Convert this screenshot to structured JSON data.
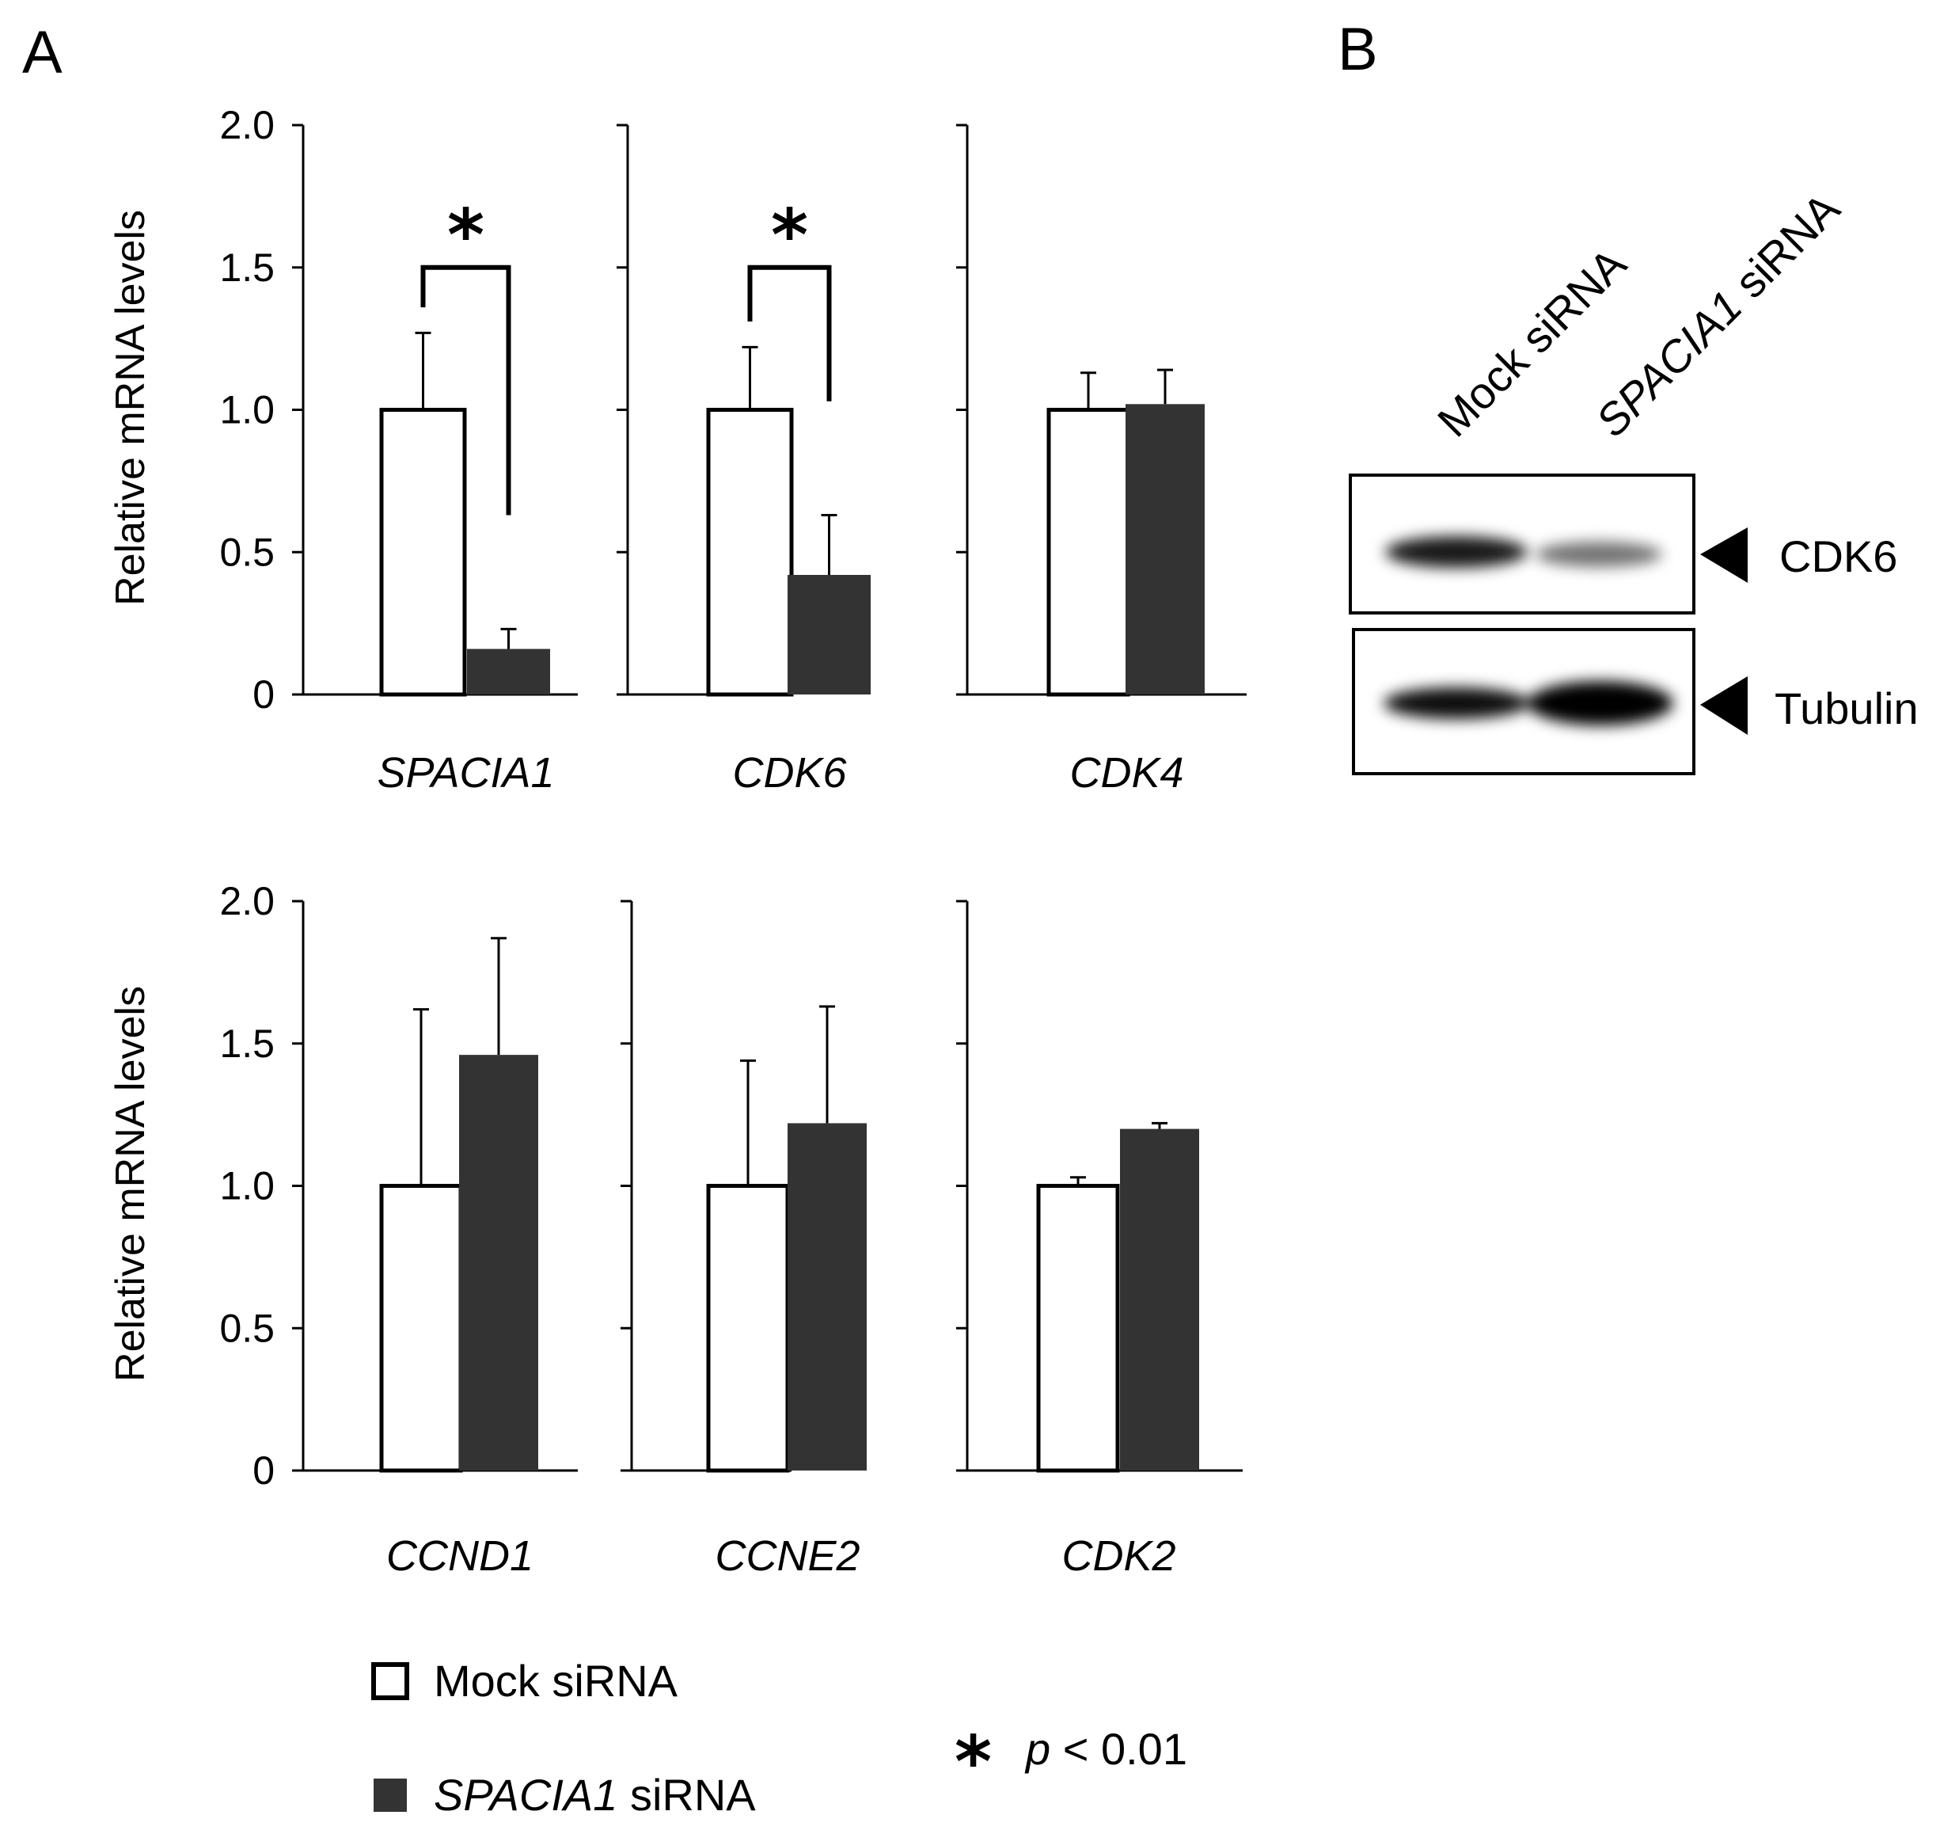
{
  "panels": {
    "a_label": "A",
    "b_label": "B"
  },
  "colors": {
    "mock": "#ffffff",
    "spacia1": "#333333",
    "axis": "#000000"
  },
  "legend": {
    "mock_label": "Mock siRNA",
    "spacia1_label_italic": "SPACIA1",
    "spacia1_label_rest": " siRNA",
    "sig_symbol": "*",
    "sig_p": "p",
    "sig_rest": " < 0.01"
  },
  "chart_data": [
    {
      "type": "bar",
      "title": "SPACIA1",
      "ylabel": "Relative mRNA levels",
      "yticks": [
        "0",
        "0.5",
        "1.0",
        "1.5",
        "2.0"
      ],
      "ylim": [
        0,
        2.0
      ],
      "series": [
        {
          "name": "Mock siRNA",
          "value": 1.0,
          "error": 0.27
        },
        {
          "name": "SPACIA1 siRNA",
          "value": 0.16,
          "error": 0.07
        }
      ],
      "significance": "*",
      "bracket_top": 1.5
    },
    {
      "type": "bar",
      "title": "CDK6",
      "ylabel": "",
      "ylim": [
        0,
        2.0
      ],
      "series": [
        {
          "name": "Mock siRNA",
          "value": 1.0,
          "error": 0.22
        },
        {
          "name": "SPACIA1 siRNA",
          "value": 0.42,
          "error": 0.21
        }
      ],
      "significance": "*",
      "bracket_top": 1.5
    },
    {
      "type": "bar",
      "title": "CDK4",
      "ylabel": "",
      "ylim": [
        0,
        2.0
      ],
      "series": [
        {
          "name": "Mock siRNA",
          "value": 1.0,
          "error": 0.13
        },
        {
          "name": "SPACIA1 siRNA",
          "value": 1.02,
          "error": 0.12
        }
      ]
    },
    {
      "type": "bar",
      "title": "CCND1",
      "ylabel": "Relative mRNA levels",
      "yticks": [
        "0",
        "0.5",
        "1.0",
        "1.5",
        "2.0"
      ],
      "ylim": [
        0,
        2.0
      ],
      "series": [
        {
          "name": "Mock siRNA",
          "value": 1.0,
          "error": 0.62
        },
        {
          "name": "SPACIA1 siRNA",
          "value": 1.46,
          "error": 0.41
        }
      ]
    },
    {
      "type": "bar",
      "title": "CCNE2",
      "ylabel": "",
      "ylim": [
        0,
        2.0
      ],
      "series": [
        {
          "name": "Mock siRNA",
          "value": 1.0,
          "error": 0.44
        },
        {
          "name": "SPACIA1 siRNA",
          "value": 1.22,
          "error": 0.41
        }
      ]
    },
    {
      "type": "bar",
      "title": "CDK2",
      "ylabel": "",
      "ylim": [
        0,
        2.0
      ],
      "series": [
        {
          "name": "Mock siRNA",
          "value": 1.0,
          "error": 0.03
        },
        {
          "name": "SPACIA1 siRNA",
          "value": 1.2,
          "error": 0.02
        }
      ]
    }
  ],
  "western_blot": {
    "lane1": "Mock siRNA",
    "lane2_italic": "SPACIA1",
    "lane2_rest": " siRNA",
    "bands": [
      {
        "label": "CDK6",
        "lane1_intensity": 0.9,
        "lane2_intensity": 0.55
      },
      {
        "label": "Tubulin",
        "lane1_intensity": 0.95,
        "lane2_intensity": 1.0
      }
    ]
  }
}
